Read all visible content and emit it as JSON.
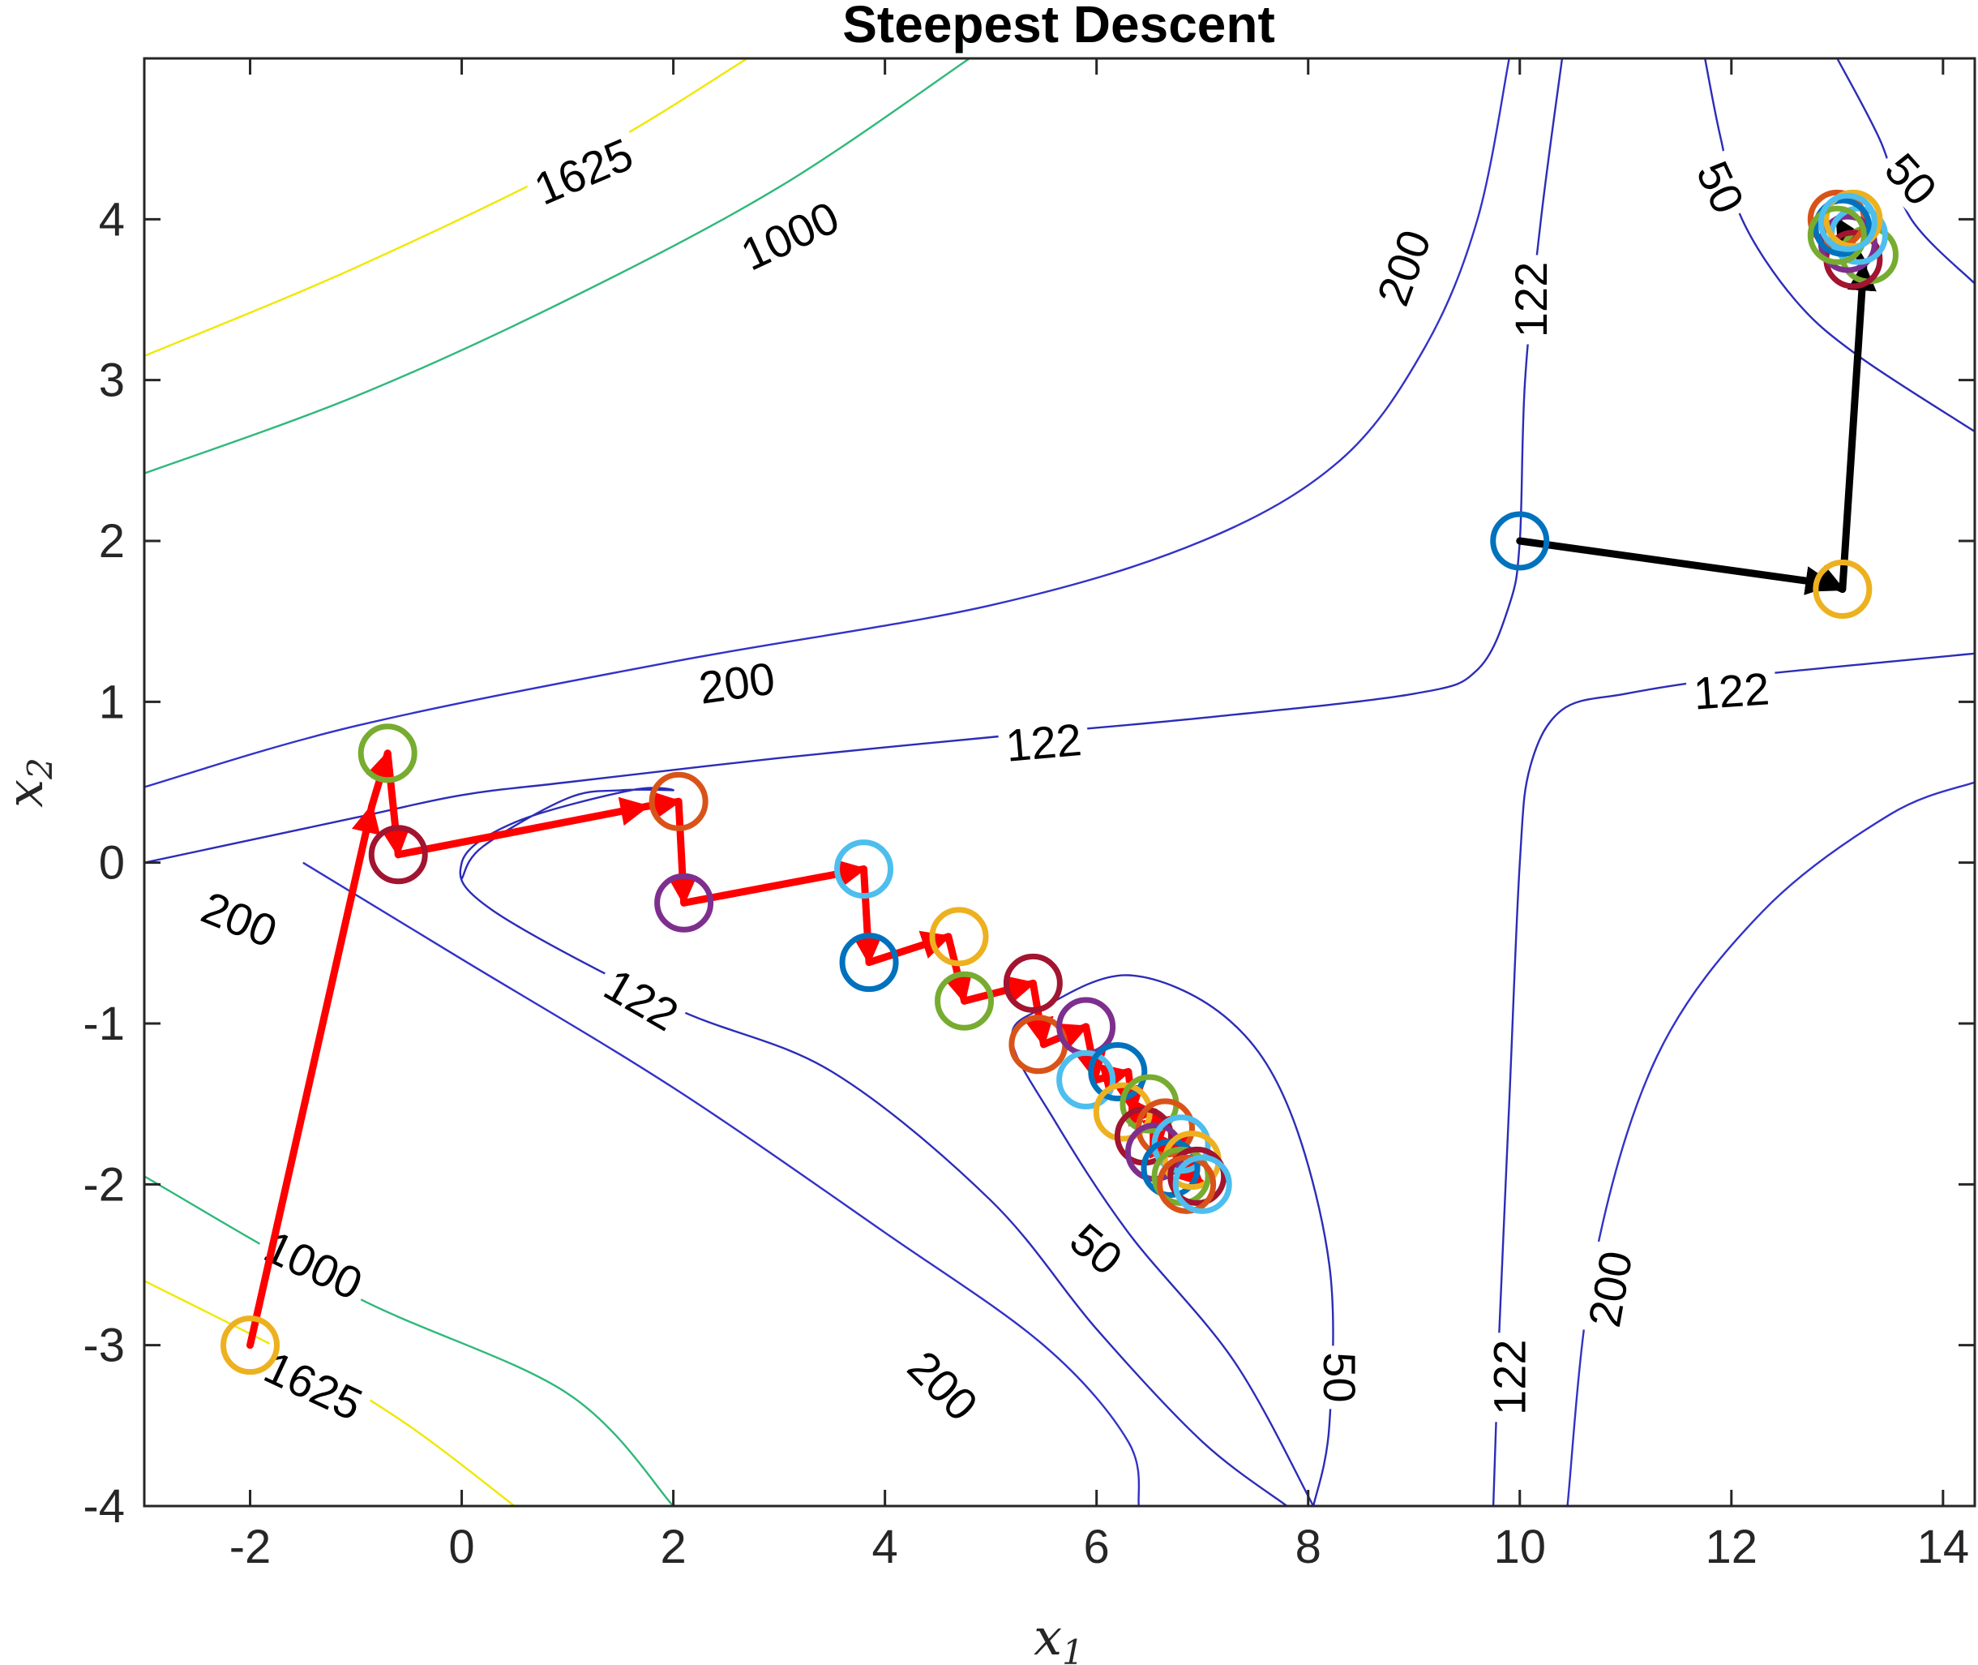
{
  "chart_data": {
    "type": "contour",
    "title": "Steepest Descent",
    "xlabel": "x",
    "xlabel_sub": "1",
    "ylabel": "x",
    "ylabel_sub": "2",
    "xlim": [
      -3,
      14.3
    ],
    "ylim": [
      -4,
      5
    ],
    "xticks": [
      -2,
      0,
      2,
      4,
      6,
      8,
      10,
      12,
      14
    ],
    "yticks": [
      -4,
      -3,
      -2,
      -1,
      0,
      1,
      2,
      3,
      4
    ],
    "grid": false,
    "contour_levels": [
      {
        "value": "50",
        "color": "#2c2cb8"
      },
      {
        "value": "122",
        "color": "#2c2cb8"
      },
      {
        "value": "200",
        "color": "#3232c8"
      },
      {
        "value": "1000",
        "color": "#2fb87a"
      },
      {
        "value": "1625",
        "color": "#f0e800"
      }
    ],
    "contour_lines": [
      {
        "level": "1625",
        "color": "#f0e800",
        "points": [
          [
            -3,
            3.15
          ],
          [
            -1,
            3.7
          ],
          [
            1.2,
            4.4
          ],
          [
            2.7,
            5
          ]
        ]
      },
      {
        "level": "1000",
        "color": "#2fb87a",
        "points": [
          [
            -3,
            2.42
          ],
          [
            -1,
            2.9
          ],
          [
            1,
            3.5
          ],
          [
            3,
            4.2
          ],
          [
            4.8,
            5
          ]
        ]
      },
      {
        "level": "200",
        "color": "#3232c8",
        "points": [
          [
            -3,
            0.47
          ],
          [
            -1,
            0.85
          ],
          [
            2,
            1.25
          ],
          [
            5,
            1.6
          ],
          [
            7,
            2
          ],
          [
            8.3,
            2.5
          ],
          [
            9.1,
            3.2
          ],
          [
            9.6,
            4
          ],
          [
            9.9,
            5
          ]
        ]
      },
      {
        "level": "122",
        "color": "#2c2cb8",
        "points": [
          [
            -3,
            0
          ],
          [
            -1,
            0.28
          ],
          [
            0,
            0.42
          ],
          [
            1,
            0.5
          ],
          [
            3,
            0.65
          ],
          [
            5,
            0.78
          ],
          [
            7,
            0.9
          ],
          [
            9,
            1.05
          ],
          [
            9.6,
            1.2
          ],
          [
            9.9,
            1.6
          ],
          [
            10,
            2
          ],
          [
            10.05,
            3
          ],
          [
            10.2,
            4
          ],
          [
            10.4,
            5
          ]
        ]
      },
      {
        "level": "1625",
        "color": "#f0e800",
        "points": [
          [
            -3,
            -2.6
          ],
          [
            -1.5,
            -3.1
          ],
          [
            -0.5,
            -3.5
          ],
          [
            0.5,
            -4
          ]
        ]
      },
      {
        "level": "1000",
        "color": "#2fb87a",
        "points": [
          [
            -3,
            -1.95
          ],
          [
            -1,
            -2.7
          ],
          [
            1,
            -3.3
          ],
          [
            2,
            -4
          ]
        ]
      },
      {
        "level": "200",
        "color": "#3232c8",
        "points": [
          [
            -1.5,
            0
          ],
          [
            0,
            -0.6
          ],
          [
            2,
            -1.4
          ],
          [
            4,
            -2.3
          ],
          [
            5.5,
            -3
          ],
          [
            6.3,
            -3.6
          ],
          [
            6.4,
            -4
          ]
        ]
      },
      {
        "level": "122",
        "color": "#2c2cb8",
        "points": [
          [
            0,
            -0.1
          ],
          [
            0.2,
            0.1
          ],
          [
            1,
            0.4
          ],
          [
            1.5,
            0.45
          ],
          [
            2,
            0.45
          ],
          [
            1.6,
            0.45
          ],
          [
            0.5,
            0.25
          ],
          [
            0,
            0
          ],
          [
            0.3,
            -0.3
          ],
          [
            2,
            -0.9
          ],
          [
            3.5,
            -1.3
          ],
          [
            5,
            -2.1
          ],
          [
            6,
            -2.9
          ],
          [
            7,
            -3.6
          ],
          [
            7.8,
            -4
          ]
        ]
      },
      {
        "level": "50",
        "color": "#2c2cb8",
        "points": [
          [
            8.05,
            -4
          ],
          [
            8.2,
            -3.5
          ],
          [
            8.2,
            -2.5
          ],
          [
            7.8,
            -1.5
          ],
          [
            7.2,
            -0.95
          ],
          [
            6.3,
            -0.7
          ],
          [
            5.5,
            -0.9
          ],
          [
            5.2,
            -1.1
          ],
          [
            5.6,
            -1.6
          ],
          [
            6.3,
            -2.3
          ],
          [
            7.3,
            -3.1
          ],
          [
            8.05,
            -4
          ]
        ]
      },
      {
        "level": "122",
        "color": "#2c2cb8",
        "points": [
          [
            9.75,
            -4
          ],
          [
            9.8,
            -3
          ],
          [
            9.9,
            -1.5
          ],
          [
            10.0,
            0
          ],
          [
            10.1,
            0.6
          ],
          [
            10.4,
            0.95
          ],
          [
            11,
            1.05
          ],
          [
            12,
            1.15
          ],
          [
            13.5,
            1.25
          ],
          [
            14.3,
            1.3
          ]
        ]
      },
      {
        "level": "200",
        "color": "#3232c8",
        "points": [
          [
            10.45,
            -4
          ],
          [
            10.7,
            -2.5
          ],
          [
            11.3,
            -1.2
          ],
          [
            12.3,
            -0.3
          ],
          [
            13.5,
            0.3
          ],
          [
            14.3,
            0.5
          ]
        ]
      },
      {
        "level": "50",
        "color": "#2c2cb8",
        "points": [
          [
            11.75,
            5
          ],
          [
            11.9,
            4.5
          ],
          [
            12.1,
            4
          ],
          [
            12.6,
            3.5
          ],
          [
            13.2,
            3.15
          ],
          [
            14.3,
            2.68
          ]
        ]
      },
      {
        "level": "50",
        "color": "#2c2cb8",
        "points": [
          [
            13,
            5
          ],
          [
            13.4,
            4.5
          ],
          [
            13.7,
            4.0
          ],
          [
            14.3,
            3.6
          ]
        ]
      }
    ],
    "contour_text": [
      {
        "text": "1625",
        "x": 1.15,
        "y": 4.3,
        "angle": -23
      },
      {
        "text": "1000",
        "x": 3.1,
        "y": 3.9,
        "angle": -25
      },
      {
        "text": "200",
        "x": 8.9,
        "y": 3.7,
        "angle": -70
      },
      {
        "text": "122",
        "x": 10.1,
        "y": 3.5,
        "angle": -90
      },
      {
        "text": "50",
        "x": 11.9,
        "y": 4.2,
        "angle": 65
      },
      {
        "text": "50",
        "x": 13.7,
        "y": 4.25,
        "angle": 48
      },
      {
        "text": "200",
        "x": 2.6,
        "y": 1.12,
        "angle": -8
      },
      {
        "text": "122",
        "x": 5.5,
        "y": 0.75,
        "angle": -5
      },
      {
        "text": "122",
        "x": 12,
        "y": 1.07,
        "angle": -4
      },
      {
        "text": "200",
        "x": -2.1,
        "y": -0.35,
        "angle": 22
      },
      {
        "text": "122",
        "x": 1.7,
        "y": -0.85,
        "angle": 30
      },
      {
        "text": "50",
        "x": 6.0,
        "y": -2.4,
        "angle": 40
      },
      {
        "text": "1000",
        "x": -1.4,
        "y": -2.5,
        "angle": 25
      },
      {
        "text": "1625",
        "x": -1.4,
        "y": -3.25,
        "angle": 25
      },
      {
        "text": "200",
        "x": 4.55,
        "y": -3.25,
        "angle": 45
      },
      {
        "text": "50",
        "x": 8.3,
        "y": -3.2,
        "angle": 90
      },
      {
        "text": "122",
        "x": 9.9,
        "y": -3.2,
        "angle": -90
      },
      {
        "text": "200",
        "x": 10.85,
        "y": -2.65,
        "angle": -80
      }
    ],
    "series": [
      {
        "color": "#ff0000",
        "path": [
          [
            -2,
            -3
          ],
          [
            -0.85,
            0.35
          ],
          [
            -0.7,
            0.68
          ],
          [
            -0.6,
            0.05
          ],
          [
            1.75,
            0.35
          ],
          [
            2.05,
            0.38
          ],
          [
            2.1,
            -0.25
          ],
          [
            3.8,
            -0.04
          ],
          [
            3.85,
            -0.62
          ],
          [
            4.6,
            -0.46
          ],
          [
            4.75,
            -0.86
          ],
          [
            5.4,
            -0.75
          ],
          [
            5.5,
            -1.13
          ],
          [
            5.9,
            -1.02
          ],
          [
            6.0,
            -1.35
          ],
          [
            6.3,
            -1.3
          ],
          [
            6.35,
            -1.55
          ],
          [
            6.55,
            -1.55
          ],
          [
            6.6,
            -1.75
          ],
          [
            6.75,
            -1.75
          ],
          [
            6.8,
            -1.88
          ],
          [
            7.0,
            -2.0
          ]
        ]
      },
      {
        "color": "#000000",
        "path": [
          [
            10,
            2
          ],
          [
            12.95,
            1.73
          ],
          [
            13.05,
            1.7
          ],
          [
            13.25,
            3.72
          ],
          [
            13.0,
            4.0
          ]
        ]
      }
    ],
    "iterates": [
      {
        "x": -2,
        "y": -3,
        "color": "#edb120"
      },
      {
        "x": -0.7,
        "y": 0.68,
        "color": "#77ac30"
      },
      {
        "x": -0.6,
        "y": 0.05,
        "color": "#a2142f"
      },
      {
        "x": 2.05,
        "y": 0.38,
        "color": "#d95319"
      },
      {
        "x": 2.1,
        "y": -0.25,
        "color": "#7e2f8e"
      },
      {
        "x": 3.8,
        "y": -0.04,
        "color": "#4dbeee"
      },
      {
        "x": 3.85,
        "y": -0.62,
        "color": "#0072bd"
      },
      {
        "x": 4.7,
        "y": -0.46,
        "color": "#edb120"
      },
      {
        "x": 4.75,
        "y": -0.86,
        "color": "#77ac30"
      },
      {
        "x": 5.4,
        "y": -0.75,
        "color": "#a2142f"
      },
      {
        "x": 5.45,
        "y": -1.13,
        "color": "#d95319"
      },
      {
        "x": 5.9,
        "y": -1.02,
        "color": "#7e2f8e"
      },
      {
        "x": 5.9,
        "y": -1.35,
        "color": "#4dbeee"
      },
      {
        "x": 6.2,
        "y": -1.3,
        "color": "#0072bd"
      },
      {
        "x": 6.25,
        "y": -1.55,
        "color": "#edb120"
      },
      {
        "x": 6.5,
        "y": -1.5,
        "color": "#77ac30"
      },
      {
        "x": 6.45,
        "y": -1.7,
        "color": "#a2142f"
      },
      {
        "x": 6.65,
        "y": -1.65,
        "color": "#d95319"
      },
      {
        "x": 6.55,
        "y": -1.8,
        "color": "#7e2f8e"
      },
      {
        "x": 6.8,
        "y": -1.75,
        "color": "#4dbeee"
      },
      {
        "x": 6.7,
        "y": -1.9,
        "color": "#0072bd"
      },
      {
        "x": 6.9,
        "y": -1.85,
        "color": "#edb120"
      },
      {
        "x": 6.8,
        "y": -1.95,
        "color": "#77ac30"
      },
      {
        "x": 6.95,
        "y": -1.95,
        "color": "#a2142f"
      },
      {
        "x": 6.85,
        "y": -2.0,
        "color": "#d95319"
      },
      {
        "x": 7.0,
        "y": -2.0,
        "color": "#4dbeee"
      },
      {
        "x": 10,
        "y": 2,
        "color": "#0072bd"
      },
      {
        "x": 13.05,
        "y": 1.7,
        "color": "#edb120"
      },
      {
        "x": 13.3,
        "y": 3.78,
        "color": "#77ac30"
      },
      {
        "x": 13.15,
        "y": 3.75,
        "color": "#a2142f"
      },
      {
        "x": 13.0,
        "y": 4.0,
        "color": "#d95319"
      },
      {
        "x": 13.1,
        "y": 3.85,
        "color": "#7e2f8e"
      },
      {
        "x": 13.2,
        "y": 3.9,
        "color": "#4dbeee"
      },
      {
        "x": 13.05,
        "y": 3.95,
        "color": "#0072bd"
      },
      {
        "x": 13.15,
        "y": 4.0,
        "color": "#edb120"
      },
      {
        "x": 13.0,
        "y": 3.9,
        "color": "#77ac30"
      },
      {
        "x": 13.1,
        "y": 3.98,
        "color": "#4dbeee"
      }
    ]
  }
}
